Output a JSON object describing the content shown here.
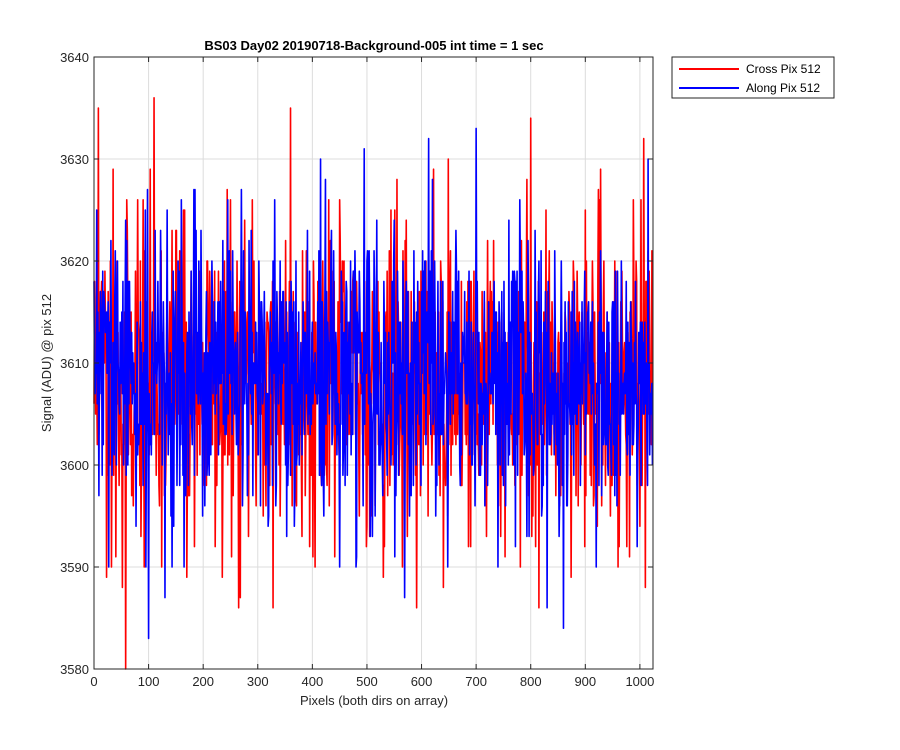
{
  "chart_data": {
    "type": "line",
    "title": "BS03 Day02 20190718-Background-005 int time = 1 sec",
    "xlabel": "Pixels (both dirs on array)",
    "ylabel": "Signal (ADU) @ pix 512",
    "xlim": [
      0,
      1024
    ],
    "ylim": [
      3580,
      3640
    ],
    "xticks": [
      0,
      100,
      200,
      300,
      400,
      500,
      600,
      700,
      800,
      900,
      1000
    ],
    "yticks": [
      3580,
      3590,
      3600,
      3610,
      3620,
      3630,
      3640
    ],
    "grid": true,
    "legend_position": "outside-top-right",
    "series": [
      {
        "name": "Cross Pix 512",
        "color": "#ff0000",
        "noise": {
          "n_points": 1024,
          "mean": 3608.5,
          "std": 7.5,
          "seed": 11
        },
        "spikes": [
          {
            "x": 8,
            "y": 3635
          },
          {
            "x": 20,
            "y": 3619
          },
          {
            "x": 23,
            "y": 3589
          },
          {
            "x": 35,
            "y": 3629
          },
          {
            "x": 40,
            "y": 3591
          },
          {
            "x": 52,
            "y": 3588
          },
          {
            "x": 58,
            "y": 3580
          },
          {
            "x": 80,
            "y": 3626
          },
          {
            "x": 92,
            "y": 3590
          },
          {
            "x": 110,
            "y": 3636
          },
          {
            "x": 120,
            "y": 3596
          },
          {
            "x": 150,
            "y": 3623
          },
          {
            "x": 170,
            "y": 3589
          },
          {
            "x": 200,
            "y": 3598
          },
          {
            "x": 225,
            "y": 3598
          },
          {
            "x": 235,
            "y": 3589
          },
          {
            "x": 265,
            "y": 3586
          },
          {
            "x": 290,
            "y": 3626
          },
          {
            "x": 328,
            "y": 3586
          },
          {
            "x": 360,
            "y": 3635
          },
          {
            "x": 395,
            "y": 3592
          },
          {
            "x": 430,
            "y": 3626
          },
          {
            "x": 485,
            "y": 3602
          },
          {
            "x": 530,
            "y": 3589
          },
          {
            "x": 560,
            "y": 3602
          },
          {
            "x": 640,
            "y": 3588
          },
          {
            "x": 690,
            "y": 3592
          },
          {
            "x": 760,
            "y": 3602
          },
          {
            "x": 800,
            "y": 3634
          },
          {
            "x": 815,
            "y": 3586
          },
          {
            "x": 900,
            "y": 3625
          },
          {
            "x": 960,
            "y": 3590
          },
          {
            "x": 1010,
            "y": 3588
          }
        ]
      },
      {
        "name": "Along Pix 512",
        "color": "#0000ff",
        "noise": {
          "n_points": 1024,
          "mean": 3608.5,
          "std": 7.0,
          "seed": 29
        },
        "spikes": [
          {
            "x": 5,
            "y": 3625
          },
          {
            "x": 60,
            "y": 3622
          },
          {
            "x": 100,
            "y": 3583
          },
          {
            "x": 130,
            "y": 3587
          },
          {
            "x": 165,
            "y": 3590
          },
          {
            "x": 185,
            "y": 3627
          },
          {
            "x": 245,
            "y": 3626
          },
          {
            "x": 320,
            "y": 3595
          },
          {
            "x": 415,
            "y": 3630
          },
          {
            "x": 480,
            "y": 3590
          },
          {
            "x": 550,
            "y": 3624
          },
          {
            "x": 620,
            "y": 3628
          },
          {
            "x": 700,
            "y": 3633
          },
          {
            "x": 740,
            "y": 3590
          },
          {
            "x": 795,
            "y": 3622
          },
          {
            "x": 830,
            "y": 3586
          },
          {
            "x": 860,
            "y": 3584
          },
          {
            "x": 920,
            "y": 3590
          },
          {
            "x": 995,
            "y": 3592
          },
          {
            "x": 1015,
            "y": 3630
          }
        ]
      }
    ]
  }
}
